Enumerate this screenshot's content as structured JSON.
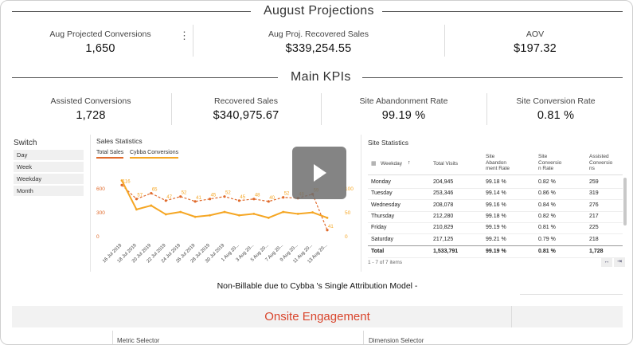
{
  "projections": {
    "title": "August Projections",
    "kpis": [
      {
        "label": "Aug Projected Conversions",
        "value": "1,650"
      },
      {
        "label": "Aug Proj. Recovered Sales",
        "value": "$339,254.55"
      },
      {
        "label": "AOV",
        "value": "$197.32"
      }
    ]
  },
  "main_kpis": {
    "title": "Main KPIs",
    "kpis": [
      {
        "label": "Assisted Conversions",
        "value": "1,728"
      },
      {
        "label": "Recovered Sales",
        "value": "$340,975.67"
      },
      {
        "label": "Site Abandonment Rate",
        "value": "99.19 %"
      },
      {
        "label": "Site Conversion Rate",
        "value": "0.81 %"
      }
    ]
  },
  "switch": {
    "title": "Switch",
    "options": [
      "Day",
      "Week",
      "Weekday",
      "Month"
    ]
  },
  "sales_stats": {
    "title": "Sales Statistics",
    "tabs": [
      "Total Sales",
      "Cybba Conversions"
    ],
    "y_left_ticks": [
      "600",
      "300",
      "0"
    ],
    "y_right_ticks": [
      "100",
      "50",
      "0"
    ],
    "accent": "#f5a623",
    "accent2": "#e06a2b"
  },
  "chart_data": {
    "type": "line",
    "x": [
      "16 Jul 2019",
      "18 Jul 2019",
      "20 Jul 2019",
      "22 Jul 2019",
      "24 Jul 2019",
      "26 Jul 2019",
      "28 Jul 2019",
      "30 Jul 2019",
      "1 Aug 20...",
      "3 Aug 20...",
      "5 Aug 20...",
      "7 Aug 20...",
      "9 Aug 20...",
      "11 Aug 20...",
      "13 Aug 20..."
    ],
    "series": [
      {
        "name": "Total Sales",
        "axis": "left",
        "values": [
          640,
          470,
          540,
          450,
          500,
          440,
          470,
          500,
          450,
          470,
          440,
          490,
          480,
          530,
          90
        ]
      },
      {
        "name": "Cybba Conversions",
        "axis": "right",
        "values": [
          116,
          57,
          65,
          47,
          52,
          42,
          45,
          52,
          45,
          48,
          40,
          52,
          48,
          51,
          40
        ]
      }
    ],
    "data_labels_total_sales": [
      "116",
      "57",
      "65",
      "47",
      "52",
      "41",
      "45",
      "52",
      "45",
      "48",
      "40",
      "52",
      "48",
      "59",
      "41"
    ],
    "ylim_left": [
      0,
      750
    ],
    "ylim_right": [
      0,
      125
    ]
  },
  "site_stats": {
    "title": "Site Statistics",
    "columns": [
      "Weekday",
      "Total Visits",
      "Site Abandon ment Rate",
      "Site Conversio n Rate",
      "Assisted Conversio ns"
    ],
    "rows": [
      [
        "Monday",
        "204,945",
        "99.18 %",
        "0.82 %",
        "259"
      ],
      [
        "Tuesday",
        "253,346",
        "99.14 %",
        "0.86 %",
        "319"
      ],
      [
        "Wednesday",
        "208,078",
        "99.16 %",
        "0.84 %",
        "276"
      ],
      [
        "Thursday",
        "212,280",
        "99.18 %",
        "0.82 %",
        "217"
      ],
      [
        "Friday",
        "210,829",
        "99.19 %",
        "0.81 %",
        "225"
      ],
      [
        "Saturday",
        "217,125",
        "99.21 %",
        "0.79 %",
        "218"
      ]
    ],
    "total": [
      "Total",
      "1,533,791",
      "99.19 %",
      "0.81 %",
      "1,728"
    ],
    "pager": "1 - 7 of 7 items"
  },
  "footnote": "Non-Billable due to Cybba 's Single Attribution Model -",
  "engagement": {
    "title": "Onsite Engagement",
    "metric_selector": "Metric Selector",
    "dimension_selector": "Dimension Selector"
  }
}
